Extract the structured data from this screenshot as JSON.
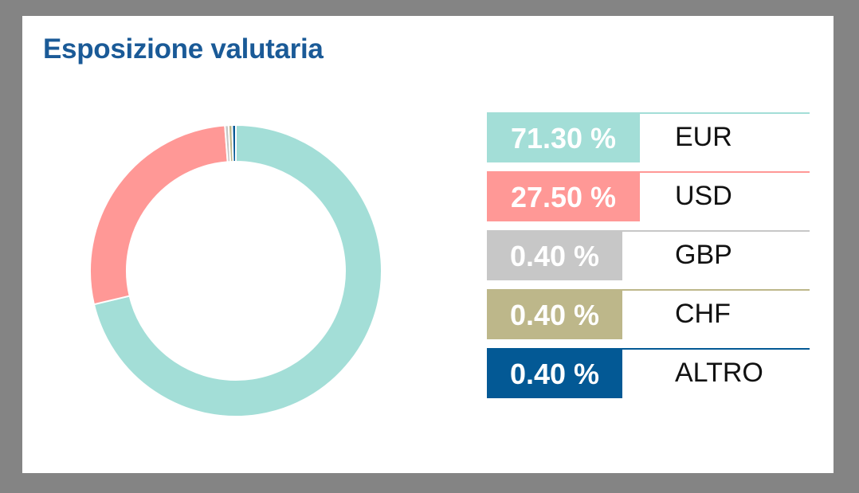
{
  "chart_data": {
    "type": "pie",
    "title": "Esposizione valutaria",
    "hole": true,
    "categories": [
      "EUR",
      "USD",
      "GBP",
      "CHF",
      "ALTRO"
    ],
    "values": [
      71.3,
      27.5,
      0.4,
      0.4,
      0.4
    ],
    "value_labels": [
      "71.30 %",
      "27.50 %",
      "0.40 %",
      "0.40 %",
      "0.40 %"
    ],
    "colors": [
      "#a3ded7",
      "#ff9896",
      "#c7c7c7",
      "#bdb78a",
      "#035995"
    ],
    "legend": "right"
  }
}
